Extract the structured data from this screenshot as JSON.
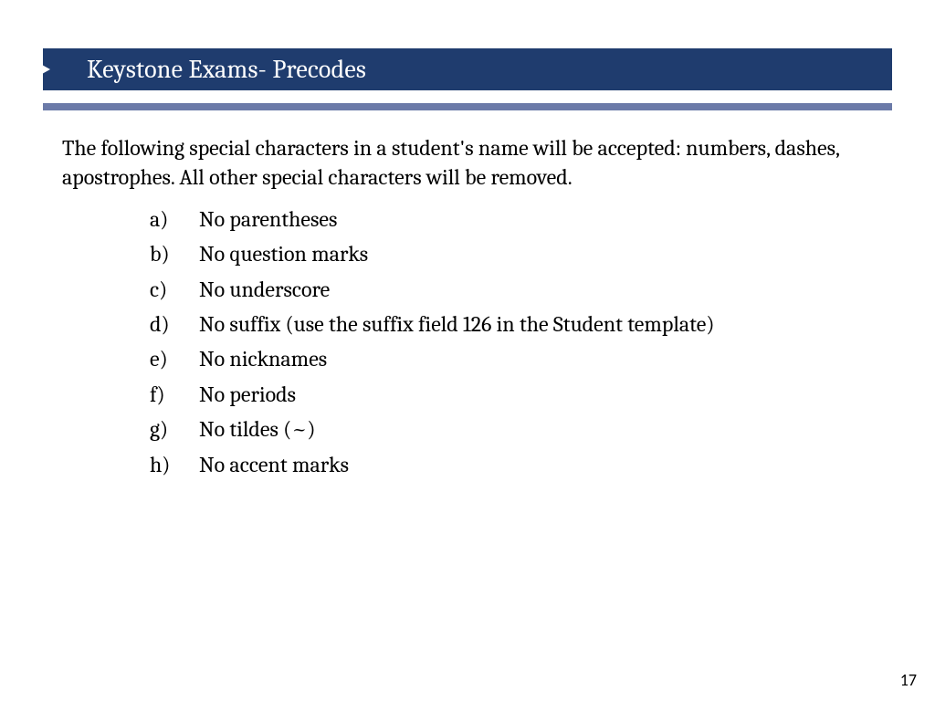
{
  "colors": {
    "title_bg": "#1f3c6e",
    "title_text": "#ffffff",
    "accent_bar": "#6b7aa8",
    "body_text": "#000000",
    "page_bg": "#ffffff"
  },
  "typography": {
    "title_fontsize": 28,
    "body_fontsize": 24,
    "pagenum_fontsize": 18
  },
  "title": "Keystone Exams- Precodes",
  "intro": "The following special characters in a student's name will be accepted: numbers, dashes, apostrophes. All other special characters will be removed.",
  "list": {
    "style": "lower-alpha-paren",
    "items": [
      {
        "marker": "a)",
        "text": "No parentheses"
      },
      {
        "marker": "b)",
        "text": "No question marks"
      },
      {
        "marker": "c)",
        "text": "No underscore"
      },
      {
        "marker": "d)",
        "text": "No suffix (use the suffix field 126 in the Student template)"
      },
      {
        "marker": "e)",
        "text": "No nicknames"
      },
      {
        "marker": "f)",
        "text": "No periods"
      },
      {
        "marker": "g)",
        "text": "No tildes (~)"
      },
      {
        "marker": "h)",
        "text": "No accent marks"
      }
    ]
  },
  "page_number": "17"
}
